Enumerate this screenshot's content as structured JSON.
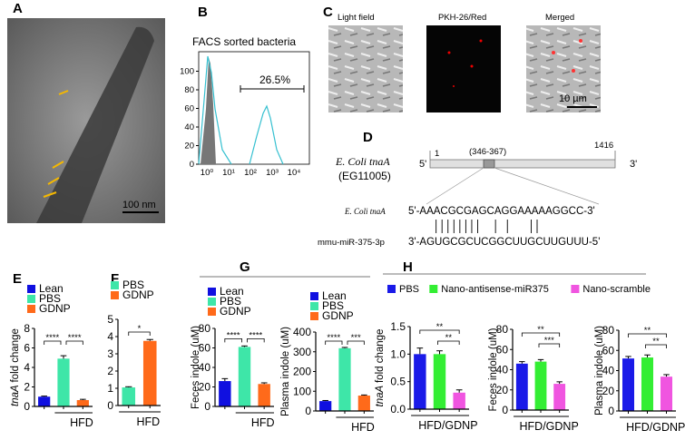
{
  "panels": {
    "A": {
      "label": "A",
      "scale_bar": "100 nm"
    },
    "B": {
      "label": "B",
      "title": "FACS sorted bacteria",
      "gate_value": "26.5%",
      "y_ticks": [
        "0",
        "20",
        "40",
        "60",
        "80",
        "100"
      ],
      "x_ticks": [
        "10⁰",
        "10¹",
        "10²",
        "10³",
        "10⁴"
      ]
    },
    "C": {
      "label": "C",
      "images": [
        "Light field",
        "PKH-26/Red",
        "Merged"
      ],
      "scale_bar": "10 µm"
    },
    "D": {
      "label": "D",
      "gene": "E. Coli tnaA",
      "gene_id": "(EG11005)",
      "start": "1",
      "end": "1416",
      "region": "(346-367)",
      "five_prime": "5'",
      "three_prime": "3'",
      "seq_label_1": "E. Coli tnaA",
      "seq_1": "5'-AAACGCGAGCAGGAAAAAGGCC-3'",
      "seq_label_2": "mmu-miR-375-3p",
      "seq_2": "3'-AGUGCGCUCGGCUUGCUUGUUU-5'"
    },
    "E": {
      "label": "E"
    },
    "F": {
      "label": "F"
    },
    "G": {
      "label": "G"
    },
    "H": {
      "label": "H"
    }
  },
  "colors": {
    "Lean": "#1010e0",
    "PBS": "#3ee6a8",
    "GDNP": "#ff6a1a",
    "PBS_H": "#1a1ae8",
    "Nano-antisense-miR375": "#33ee33",
    "Nano-scramble": "#f055e0"
  },
  "chart_data": [
    {
      "id": "E",
      "type": "bar",
      "categories": [
        "Lean",
        "PBS",
        "GDNP"
      ],
      "values": [
        1.0,
        4.9,
        0.65
      ],
      "errors": [
        0.06,
        0.3,
        0.08
      ],
      "ylabel": "tnaA fold change",
      "ylim": [
        0,
        8
      ],
      "yticks": [
        0,
        2,
        4,
        6,
        8
      ],
      "group_label": "HFD",
      "legend": [
        "Lean",
        "PBS",
        "GDNP"
      ],
      "significance": [
        {
          "pair": [
            0,
            1
          ],
          "label": "****"
        },
        {
          "pair": [
            1,
            2
          ],
          "label": "****"
        }
      ]
    },
    {
      "id": "F",
      "type": "bar",
      "categories": [
        "PBS",
        "GDNP"
      ],
      "values": [
        1.05,
        3.75
      ],
      "errors": [
        0.04,
        0.08
      ],
      "ylabel": "",
      "ylim": [
        0,
        5
      ],
      "yticks": [
        0,
        1,
        2,
        3,
        4,
        5
      ],
      "group_label": "HFD",
      "legend": [
        "PBS",
        "GDNP"
      ],
      "significance": [
        {
          "pair": [
            0,
            1
          ],
          "label": "*"
        }
      ]
    },
    {
      "id": "G1",
      "type": "bar",
      "categories": [
        "Lean",
        "PBS",
        "GDNP"
      ],
      "values": [
        26,
        61,
        23
      ],
      "errors": [
        2.5,
        1,
        1.2
      ],
      "ylabel": "Feces indole (uM)",
      "ylim": [
        0,
        80
      ],
      "yticks": [
        0,
        20,
        40,
        60,
        80
      ],
      "group_label": "HFD",
      "legend": [
        "Lean",
        "PBS",
        "GDNP"
      ],
      "significance": [
        {
          "pair": [
            0,
            1
          ],
          "label": "****"
        },
        {
          "pair": [
            1,
            2
          ],
          "label": "****"
        }
      ]
    },
    {
      "id": "G2",
      "type": "bar",
      "categories": [
        "Lean",
        "PBS",
        "GDNP"
      ],
      "values": [
        50,
        318,
        78
      ],
      "errors": [
        3,
        4,
        3
      ],
      "ylabel": "Plasma indole (uM)",
      "ylim": [
        0,
        400
      ],
      "yticks": [
        0,
        100,
        200,
        300,
        400
      ],
      "group_label": "HFD",
      "legend": [
        "Lean",
        "PBS",
        "GDNP"
      ],
      "significance": [
        {
          "pair": [
            0,
            1
          ],
          "label": "****"
        },
        {
          "pair": [
            1,
            2
          ],
          "label": "***"
        }
      ]
    },
    {
      "id": "H1",
      "type": "bar",
      "categories": [
        "PBS",
        "Nano-antisense-miR375",
        "Nano-scramble"
      ],
      "values": [
        1.0,
        1.0,
        0.3
      ],
      "errors": [
        0.11,
        0.06,
        0.05
      ],
      "ylabel": "tnaA fold change",
      "ylim": [
        0,
        1.5
      ],
      "yticks": [
        "0.0",
        "0.5",
        "1.0",
        "1.5"
      ],
      "group_label": "HFD/GDNP",
      "legend": [
        "PBS",
        "Nano-antisense-miR375",
        "Nano-scramble"
      ],
      "significance": [
        {
          "pair": [
            0,
            2
          ],
          "label": "**"
        },
        {
          "pair": [
            1,
            2
          ],
          "label": "**"
        }
      ]
    },
    {
      "id": "H2",
      "type": "bar",
      "categories": [
        "PBS",
        "Nano-antisense-miR375",
        "Nano-scramble"
      ],
      "values": [
        46,
        48,
        26
      ],
      "errors": [
        2,
        2,
        2
      ],
      "ylabel": "Feces indole (uM)",
      "ylim": [
        0,
        80
      ],
      "yticks": [
        0,
        20,
        40,
        60,
        80
      ],
      "group_label": "HFD/GDNP",
      "significance": [
        {
          "pair": [
            0,
            2
          ],
          "label": "**"
        },
        {
          "pair": [
            1,
            2
          ],
          "label": "***"
        }
      ]
    },
    {
      "id": "H3",
      "type": "bar",
      "categories": [
        "PBS",
        "Nano-antisense-miR375",
        "Nano-scramble"
      ],
      "values": [
        52,
        53,
        34
      ],
      "errors": [
        2,
        2.5,
        2
      ],
      "ylabel": "Plasma indole (uM)",
      "ylim": [
        0,
        80
      ],
      "yticks": [
        0,
        20,
        40,
        60,
        80
      ],
      "group_label": "HFD/GDNP",
      "significance": [
        {
          "pair": [
            0,
            2
          ],
          "label": "**"
        },
        {
          "pair": [
            1,
            2
          ],
          "label": "**"
        }
      ]
    }
  ]
}
